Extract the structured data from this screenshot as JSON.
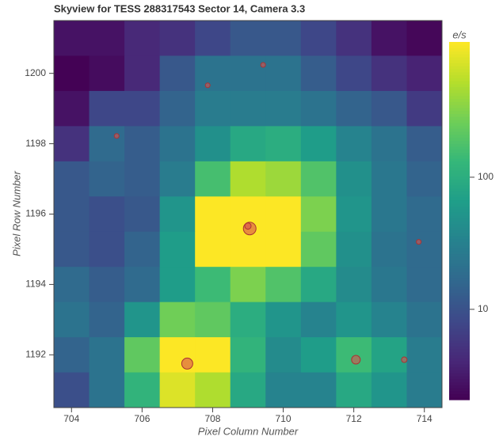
{
  "chart_data": {
    "type": "heatmap",
    "title": "Skyview for TESS 288317543 Sector 14, Camera 3.3",
    "x_label": "Pixel Column Number",
    "y_label": "Pixel Row Number",
    "colorbar_label": "e/s",
    "colormap": "viridis",
    "color_log": true,
    "x": [
      704,
      705,
      706,
      707,
      708,
      709,
      710,
      711,
      712,
      713,
      714
    ],
    "y": [
      1201,
      1200,
      1199,
      1198,
      1197,
      1196,
      1195,
      1194,
      1193,
      1192,
      1191
    ],
    "values": [
      [
        2.8,
        2.8,
        4.2,
        5.1,
        8,
        11.5,
        11.5,
        8,
        5.1,
        2.8,
        2.3
      ],
      [
        2.1,
        2.5,
        4.2,
        11.5,
        22,
        22,
        22,
        13,
        8,
        5.1,
        3.8
      ],
      [
        2.8,
        8,
        8,
        15,
        28,
        28,
        28,
        22,
        15,
        11.5,
        6.1
      ],
      [
        5.1,
        18,
        13,
        22,
        47,
        87,
        99,
        64,
        34,
        22,
        13
      ],
      [
        11.5,
        15,
        13,
        28,
        163,
        500,
        414,
        185,
        47,
        25,
        15
      ],
      [
        11.5,
        9.5,
        11.5,
        53,
        1050,
        1050,
        1050,
        303,
        53,
        25,
        18
      ],
      [
        11.5,
        9.5,
        15,
        64,
        1050,
        1050,
        1050,
        222,
        47,
        22,
        18
      ],
      [
        18,
        13,
        18,
        64,
        144,
        303,
        185,
        87,
        41,
        25,
        18
      ],
      [
        22,
        15,
        53,
        268,
        222,
        99,
        53,
        34,
        53,
        34,
        22
      ],
      [
        15,
        22,
        222,
        1050,
        1050,
        119,
        41,
        64,
        144,
        77,
        28
      ],
      [
        9.5,
        22,
        119,
        773,
        500,
        87,
        34,
        34,
        87,
        53,
        28
      ]
    ],
    "xlim": [
      703.5,
      714.5
    ],
    "ylim": [
      1190.5,
      1201.5
    ],
    "xticks": [
      704,
      706,
      708,
      710,
      712,
      714
    ],
    "yticks": [
      1192,
      1194,
      1196,
      1198,
      1200
    ],
    "clim": [
      2.07,
      1057
    ],
    "cticks": [
      10,
      100
    ],
    "stars": {
      "color": "#d9534f",
      "x": [
        709.43,
        707.86,
        705.28,
        709.05,
        709.0,
        713.84,
        707.28,
        712.06,
        713.43
      ],
      "y": [
        1200.24,
        1199.66,
        1198.22,
        1195.59,
        1195.66,
        1195.21,
        1191.75,
        1191.86,
        1191.86
      ],
      "sizes": [
        3,
        3,
        3,
        8,
        4,
        3,
        7,
        5.5,
        3.5
      ]
    }
  }
}
